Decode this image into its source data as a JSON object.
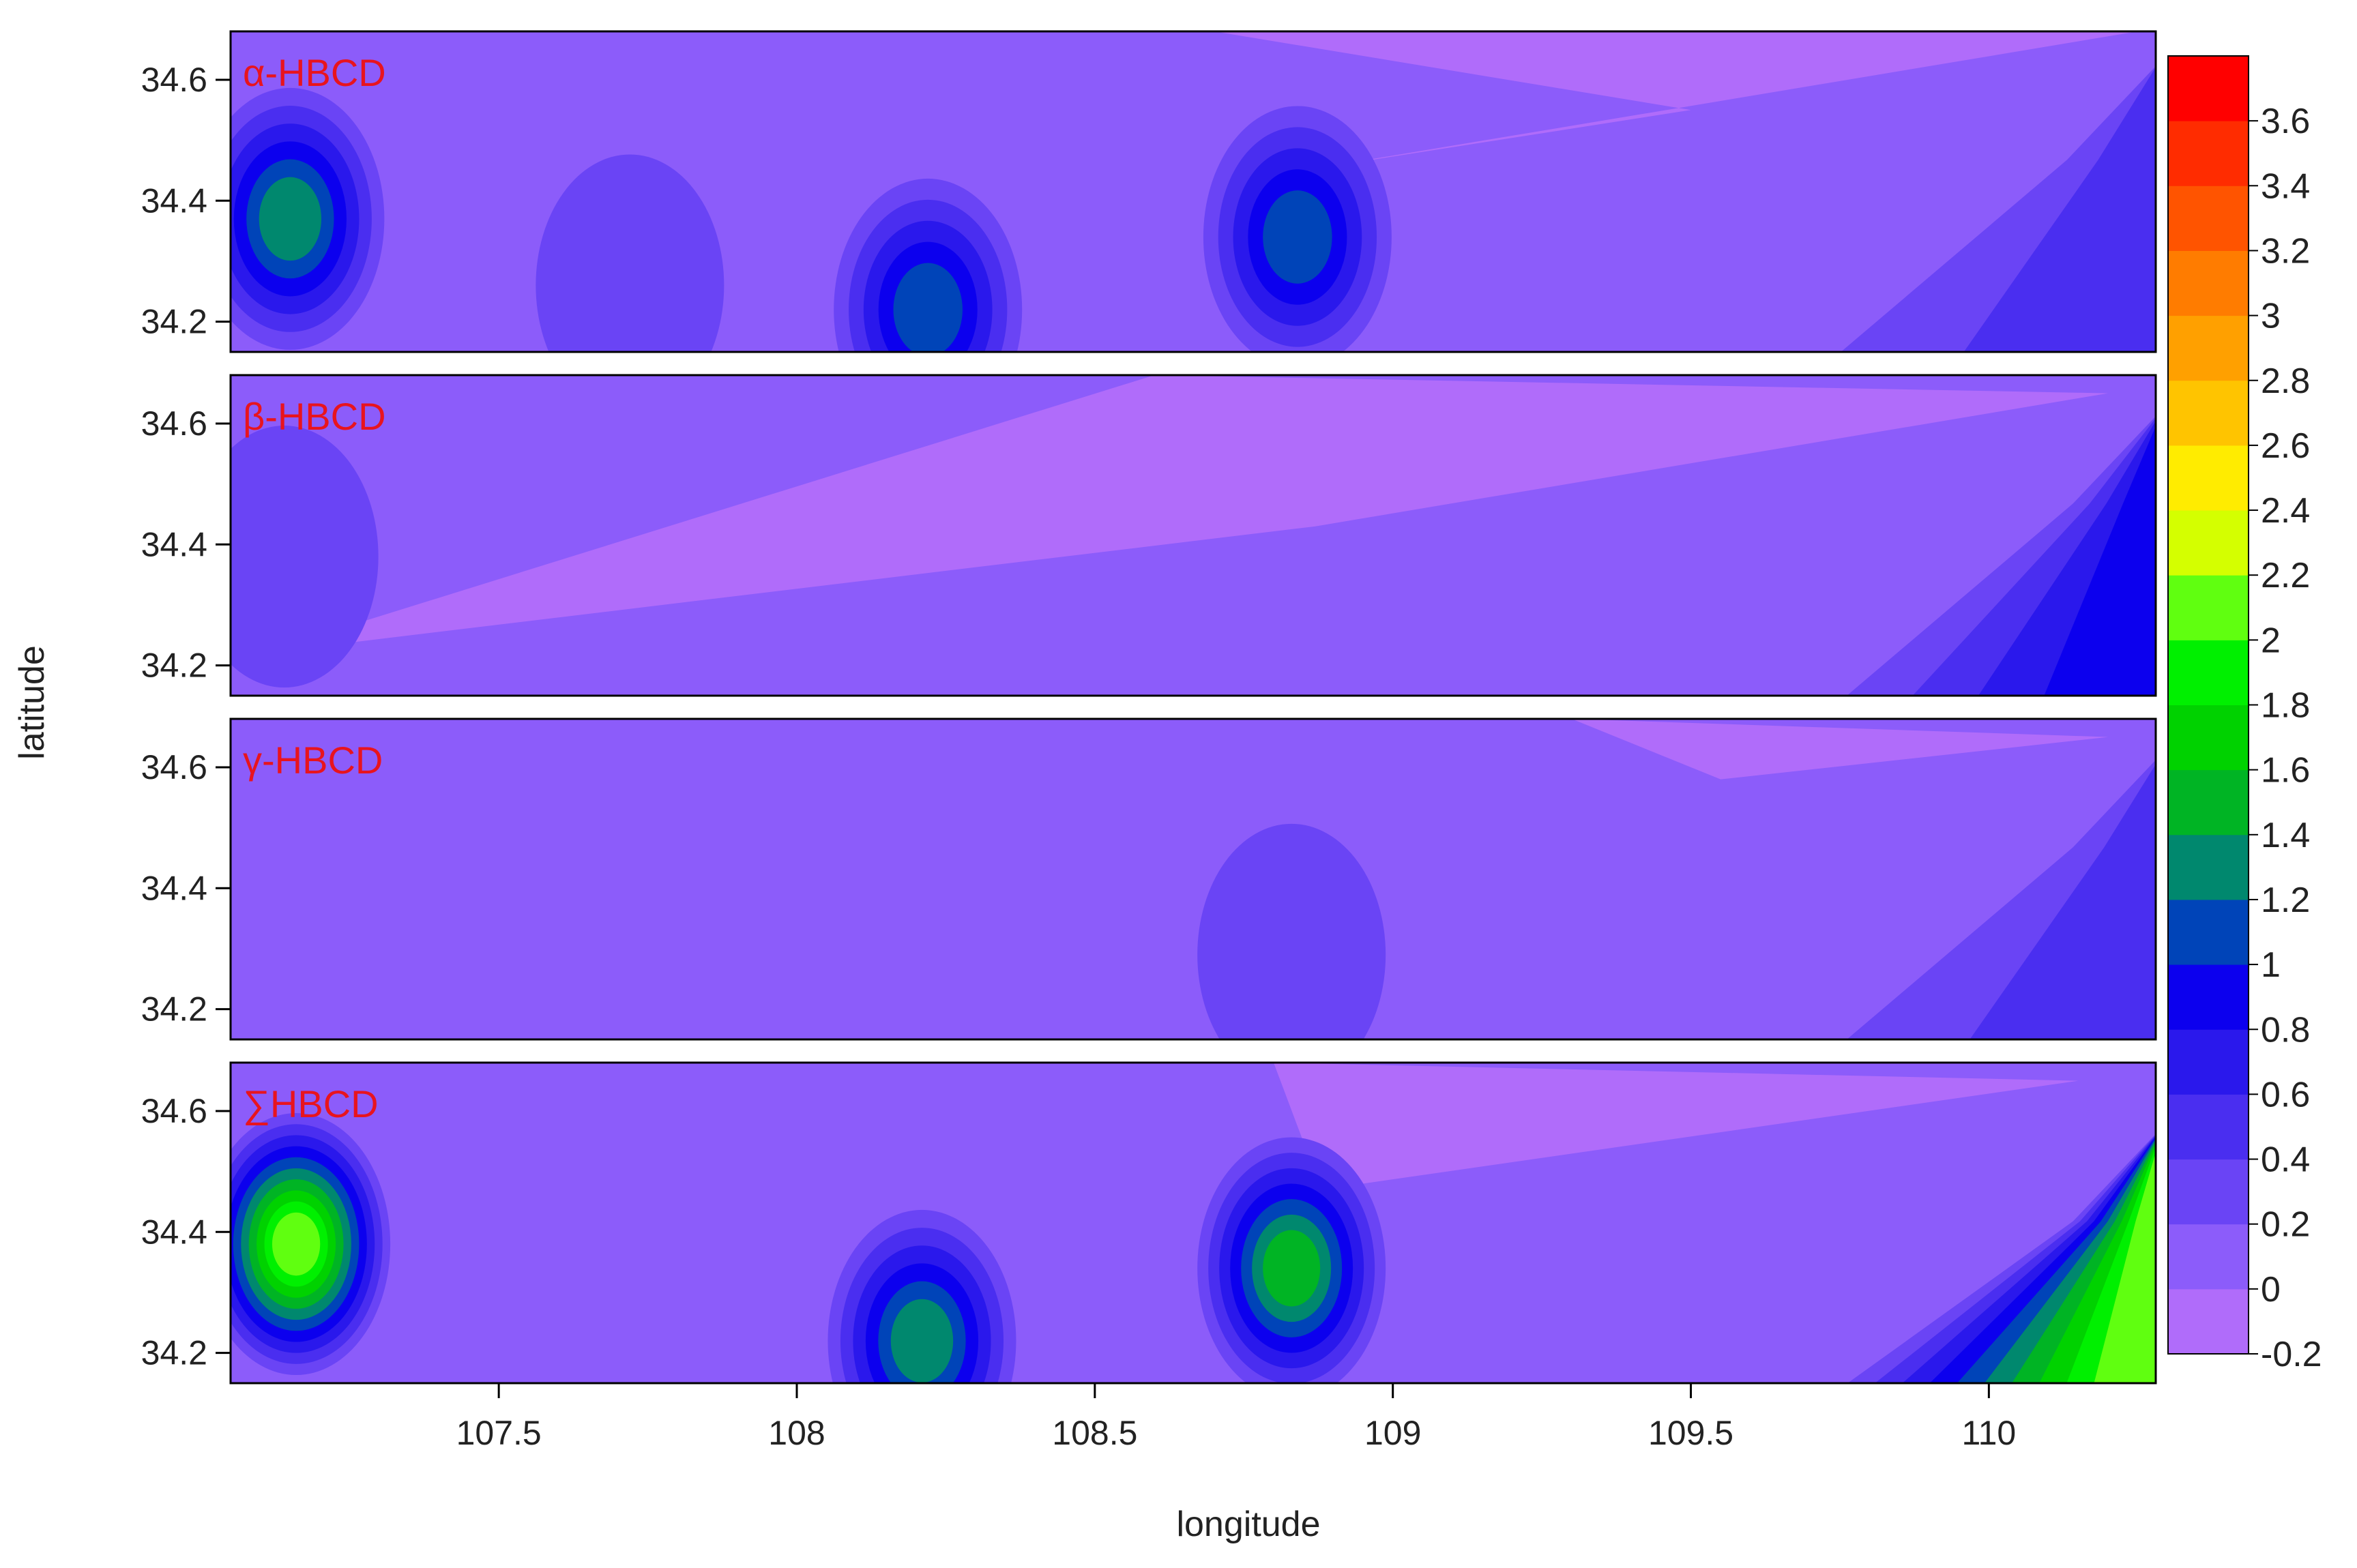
{
  "chart_data": {
    "type": "heatmap",
    "xlabel": "longitude",
    "ylabel": "latitude",
    "xlim": [
      107.05,
      110.28
    ],
    "ylim": [
      34.15,
      34.68
    ],
    "x_ticks": [
      107.5,
      108,
      108.5,
      109,
      109.5,
      110
    ],
    "x_tick_labels": [
      "107.5",
      "108",
      "108.5",
      "109",
      "109.5",
      "110"
    ],
    "y_ticks": [
      34.2,
      34.4,
      34.6
    ],
    "y_tick_labels": [
      "34.2",
      "34.4",
      "34.6"
    ],
    "colorbar": {
      "min": -0.2,
      "max": 3.8,
      "step": 0.2,
      "tick_values": [
        -0.2,
        0,
        0.2,
        0.4,
        0.6,
        0.8,
        1,
        1.2,
        1.4,
        1.6,
        1.8,
        2,
        2.2,
        2.4,
        2.6,
        2.8,
        3,
        3.2,
        3.4,
        3.6
      ],
      "tick_labels": [
        "-0.2",
        "0",
        "0.2",
        "0.4",
        "0.6",
        "0.8",
        "1",
        "1.2",
        "1.4",
        "1.6",
        "1.8",
        "2",
        "2.2",
        "2.4",
        "2.6",
        "2.8",
        "3",
        "3.2",
        "3.4",
        "3.6"
      ],
      "colors": [
        "#b06cfa",
        "#8c5cfa",
        "#6a44f5",
        "#4a2ef0",
        "#2a18ec",
        "#0c00ee",
        "#0044b8",
        "#00886e",
        "#00b424",
        "#00d200",
        "#00f000",
        "#60ff10",
        "#d4ff00",
        "#ffec00",
        "#ffc400",
        "#ffa000",
        "#ff7c00",
        "#ff5400",
        "#ff2c00",
        "#ff0000"
      ]
    },
    "panels": [
      {
        "name": "α-HBCD",
        "base": 0.1,
        "features": [
          {
            "type": "low",
            "x": [
              108.7,
              110.25,
              108.85,
              109.5
            ],
            "y": [
              34.68,
              34.68,
              34.45,
              34.55
            ],
            "value": -0.2
          },
          {
            "type": "peak",
            "x": 107.15,
            "y": 34.37,
            "value": 1.3
          },
          {
            "type": "peak",
            "x": 108.22,
            "y": 34.22,
            "value": 1.1
          },
          {
            "type": "peak",
            "x": 108.84,
            "y": 34.34,
            "value": 1.2
          },
          {
            "type": "peak",
            "x": 107.72,
            "y": 34.26,
            "value": 0.3
          },
          {
            "type": "edge",
            "x": 110.26,
            "y": 34.4,
            "value": 0.6
          }
        ]
      },
      {
        "name": "β-HBCD",
        "base": 0.1,
        "features": [
          {
            "type": "low",
            "x": [
              108.6,
              110.2,
              108.87,
              107.1
            ],
            "y": [
              34.68,
              34.65,
              34.43,
              34.22
            ],
            "value": -0.2
          },
          {
            "type": "peak",
            "x": 107.14,
            "y": 34.38,
            "value": 0.4
          },
          {
            "type": "edge",
            "x": 110.27,
            "y": 34.4,
            "value": 1.0
          }
        ]
      },
      {
        "name": "γ-HBCD",
        "base": 0.1,
        "features": [
          {
            "type": "low",
            "x": [
              109.3,
              110.2,
              109.55
            ],
            "y": [
              34.68,
              34.65,
              34.58
            ],
            "value": -0.2
          },
          {
            "type": "peak",
            "x": 108.83,
            "y": 34.29,
            "value": 0.3
          },
          {
            "type": "edge",
            "x": 110.27,
            "y": 34.4,
            "value": 0.6
          }
        ]
      },
      {
        "name": "∑HBCD",
        "base": 0.1,
        "features": [
          {
            "type": "low",
            "x": [
              108.8,
              110.15,
              108.88
            ],
            "y": [
              34.68,
              34.65,
              34.47
            ],
            "value": -0.2
          },
          {
            "type": "peak",
            "x": 107.16,
            "y": 34.38,
            "value": 2.2
          },
          {
            "type": "peak",
            "x": 108.21,
            "y": 34.22,
            "value": 1.4
          },
          {
            "type": "peak",
            "x": 108.83,
            "y": 34.34,
            "value": 1.6
          },
          {
            "type": "edge",
            "x": 110.27,
            "y": 34.35,
            "value": 2.2
          }
        ]
      }
    ]
  }
}
